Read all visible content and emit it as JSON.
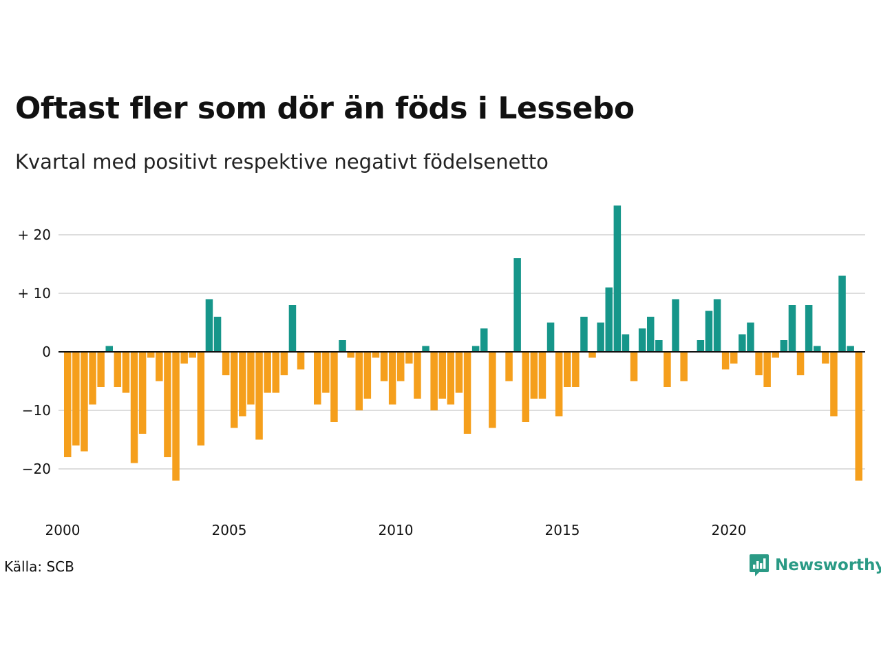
{
  "title": "Oftast fler som dör än föds i Lessebo",
  "subtitle": "Kvartal med positivt respektive negativt födelsenetto",
  "source": "Källa: SCB",
  "brand": {
    "name": "Newsworthy",
    "icon": "newsworthy-logo-icon"
  },
  "colors": {
    "positive": "#16968a",
    "negative": "#f59f1c",
    "grid": "#dddddd",
    "zero_line": "#111111"
  },
  "chart_data": {
    "type": "bar",
    "x_start_year": 2000,
    "x_ticks": [
      "2000",
      "2005",
      "2010",
      "2015",
      "2020"
    ],
    "y_ticks": [
      {
        "value": 20,
        "label": "+ 20"
      },
      {
        "value": 10,
        "label": "+ 10"
      },
      {
        "value": 0,
        "label": "0"
      },
      {
        "value": -10,
        "label": "−10"
      },
      {
        "value": -20,
        "label": "−20"
      }
    ],
    "ylim": [
      -26,
      25
    ],
    "grid": true,
    "values": [
      -18,
      -16,
      -17,
      -9,
      -6,
      1,
      -6,
      -7,
      -19,
      -14,
      -1,
      -5,
      -18,
      -22,
      -2,
      -1,
      -16,
      9,
      6,
      -4,
      -13,
      -11,
      -9,
      -15,
      -7,
      -7,
      -4,
      8,
      -3,
      0,
      -9,
      -7,
      -12,
      2,
      -1,
      -10,
      -8,
      -1,
      -5,
      -9,
      -5,
      -2,
      -8,
      1,
      -10,
      -8,
      -9,
      -7,
      -14,
      1,
      4,
      -13,
      0,
      -5,
      16,
      -12,
      -8,
      -8,
      5,
      -11,
      -6,
      -6,
      6,
      -1,
      5,
      11,
      25,
      3,
      -5,
      4,
      6,
      2,
      -6,
      9,
      -5,
      0,
      2,
      7,
      9,
      -3,
      -2,
      3,
      5,
      -4,
      -6,
      -1,
      2,
      8,
      -4,
      8,
      1,
      -2,
      -11,
      13,
      1,
      -22
    ]
  }
}
